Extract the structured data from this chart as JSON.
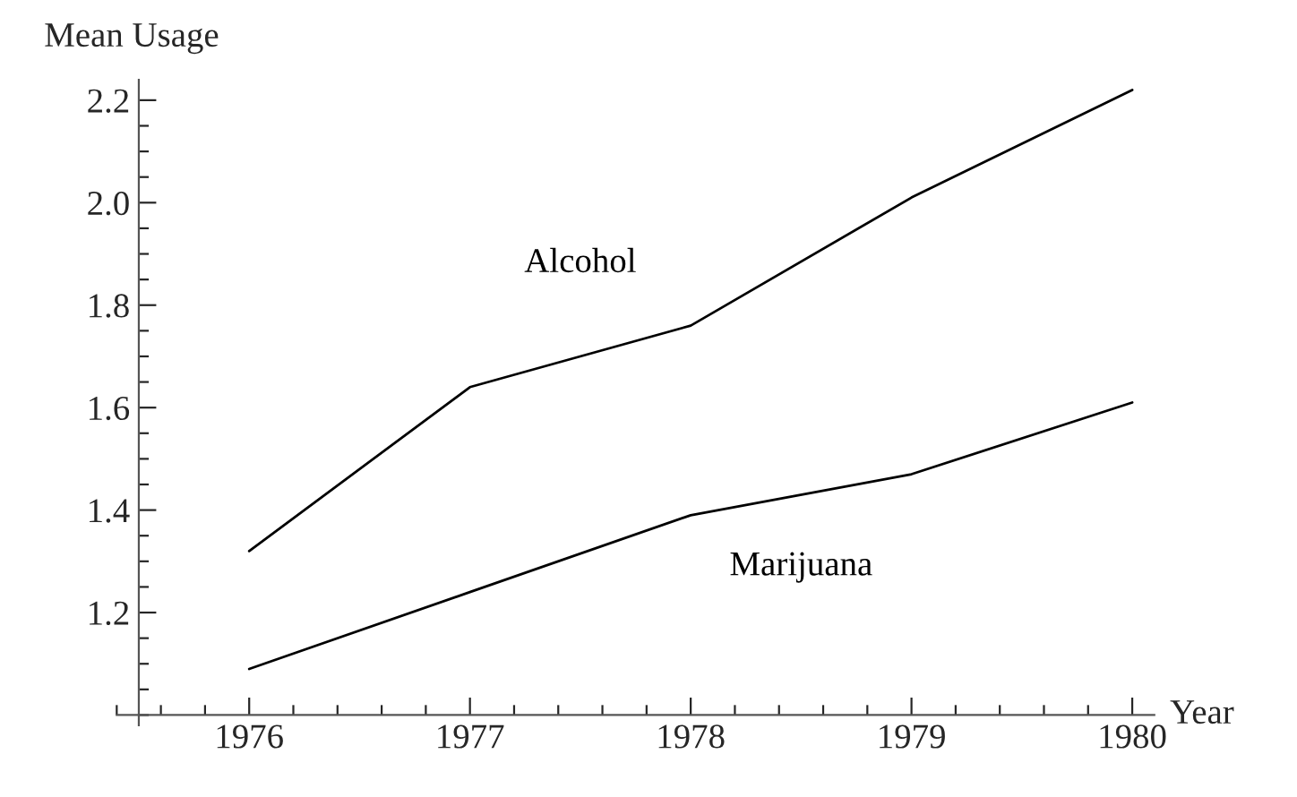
{
  "chart_data": {
    "type": "line",
    "xlabel": "Year",
    "ylabel": "Mean Usage",
    "x": [
      1976,
      1977,
      1978,
      1979,
      1980
    ],
    "series": [
      {
        "name": "Alcohol",
        "color": "#000000",
        "values": [
          1.32,
          1.64,
          1.76,
          2.01,
          2.22
        ]
      },
      {
        "name": "Marijuana",
        "color": "#000000",
        "values": [
          1.09,
          1.24,
          1.39,
          1.47,
          1.61
        ]
      }
    ],
    "xlim": [
      1975.4,
      1980.1
    ],
    "ylim": [
      0.98,
      2.24
    ],
    "xticks": [
      1976,
      1977,
      1978,
      1979,
      1980
    ],
    "yticks": [
      1.2,
      1.4,
      1.6,
      1.8,
      {
        "value": 2,
        "label": "2.0"
      },
      2.2
    ],
    "grid": false,
    "legend": false,
    "marker": "none",
    "line_style": "solid"
  }
}
